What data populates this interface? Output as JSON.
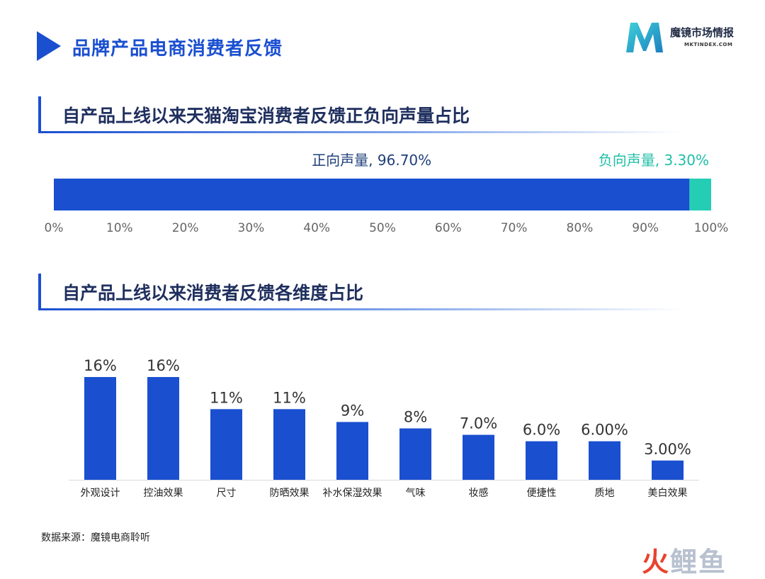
{
  "page": {
    "title": "品牌产品电商消费者反馈"
  },
  "logo": {
    "name_cn": "魔镜市场情报",
    "name_en": "MKTINDEX.COM",
    "brand_color": "#2bb3c9"
  },
  "colors": {
    "primary": "#1a4fd0",
    "positive": "#1a4fd0",
    "negative": "#25cdb5",
    "bar": "#1a4fd0"
  },
  "footer": {
    "source": "数据来源：魔镜电商聆听"
  },
  "watermark": {
    "part1": "火",
    "part2": "鲤鱼"
  },
  "chart_data": [
    {
      "type": "bar",
      "orientation": "horizontal-stacked",
      "title": "自产品上线以来天猫淘宝消费者反馈正负向声量占比",
      "series": [
        {
          "name": "正向声量",
          "value": 96.7,
          "label": "正向声量, 96.70%"
        },
        {
          "name": "负向声量",
          "value": 3.3,
          "label": "负向声量, 3.30%"
        }
      ],
      "xlim": [
        0,
        100
      ],
      "ticks": [
        "0%",
        "10%",
        "20%",
        "30%",
        "40%",
        "50%",
        "60%",
        "70%",
        "80%",
        "90%",
        "100%"
      ]
    },
    {
      "type": "bar",
      "title": "自产品上线以来消费者反馈各维度占比",
      "categories": [
        "外观设计",
        "控油效果",
        "尺寸",
        "防晒效果",
        "补水保湿效果",
        "气味",
        "妆感",
        "便捷性",
        "质地",
        "美白效果"
      ],
      "values": [
        16,
        16,
        11,
        11,
        9,
        8,
        7.0,
        6.0,
        6.0,
        3.0
      ],
      "labels": [
        "16%",
        "16%",
        "11%",
        "11%",
        "9%",
        "8%",
        "7.0%",
        "6.0%",
        "6.00%",
        "3.00%"
      ],
      "ylim": [
        0,
        16
      ]
    }
  ]
}
